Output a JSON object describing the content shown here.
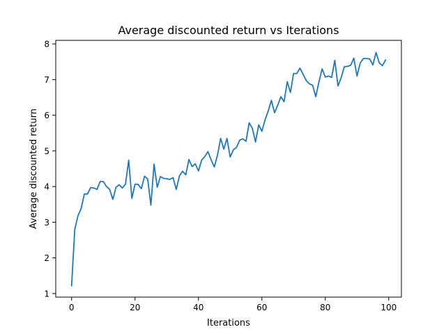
{
  "chart_data": {
    "type": "line",
    "title": "Average discounted return vs Iterations",
    "xlabel": "Iterations",
    "ylabel": "Average discounted return",
    "xlim": [
      -5,
      104
    ],
    "ylim": [
      0.9,
      8.1
    ],
    "xticks": [
      0,
      20,
      40,
      60,
      80,
      100
    ],
    "yticks": [
      1,
      2,
      3,
      4,
      5,
      6,
      7,
      8
    ],
    "grid": false,
    "series": [
      {
        "color": "#1f77b4",
        "x": [
          0,
          1,
          2,
          3,
          4,
          5,
          6,
          7,
          8,
          9,
          10,
          11,
          12,
          13,
          14,
          15,
          16,
          17,
          18,
          19,
          20,
          21,
          22,
          23,
          24,
          25,
          26,
          27,
          28,
          29,
          30,
          31,
          32,
          33,
          34,
          35,
          36,
          37,
          38,
          39,
          40,
          41,
          42,
          43,
          44,
          45,
          46,
          47,
          48,
          49,
          50,
          51,
          52,
          53,
          54,
          55,
          56,
          57,
          58,
          59,
          60,
          61,
          62,
          63,
          64,
          65,
          66,
          67,
          68,
          69,
          70,
          71,
          72,
          73,
          74,
          75,
          76,
          77,
          78,
          79,
          80,
          81,
          82,
          83,
          84,
          85,
          86,
          87,
          88,
          89,
          90,
          91,
          92,
          93,
          94,
          95,
          96,
          97,
          98,
          99
        ],
        "y": [
          1.22,
          2.8,
          3.18,
          3.38,
          3.79,
          3.79,
          3.97,
          3.96,
          3.92,
          4.14,
          4.14,
          4.0,
          3.92,
          3.64,
          3.98,
          4.05,
          3.96,
          4.07,
          4.74,
          3.67,
          4.07,
          4.06,
          3.94,
          4.29,
          4.21,
          3.48,
          4.63,
          3.98,
          4.28,
          4.23,
          4.22,
          4.2,
          4.25,
          3.92,
          4.3,
          4.43,
          4.33,
          4.76,
          4.56,
          4.64,
          4.44,
          4.74,
          4.84,
          4.98,
          4.75,
          4.55,
          4.88,
          5.35,
          5.05,
          5.35,
          4.83,
          5.03,
          5.1,
          5.3,
          5.34,
          5.27,
          5.79,
          5.63,
          5.25,
          5.73,
          5.55,
          5.87,
          6.12,
          6.42,
          6.07,
          6.28,
          6.52,
          6.38,
          6.94,
          6.64,
          7.17,
          7.17,
          7.32,
          7.15,
          6.97,
          6.88,
          6.84,
          6.52,
          6.94,
          7.3,
          7.07,
          7.1,
          7.06,
          7.54,
          6.82,
          7.05,
          7.36,
          7.37,
          7.4,
          7.6,
          7.1,
          7.46,
          7.59,
          7.59,
          7.58,
          7.41,
          7.76,
          7.47,
          7.39,
          7.55
        ]
      }
    ]
  }
}
